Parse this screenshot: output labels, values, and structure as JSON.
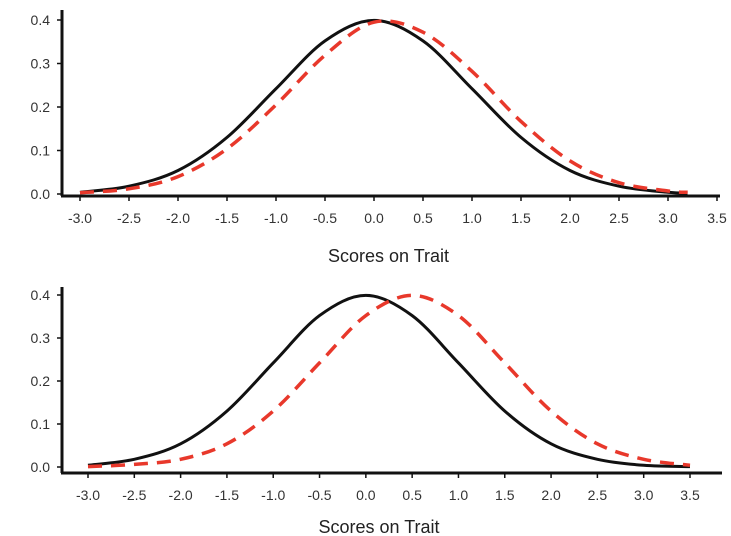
{
  "chart_data": [
    {
      "type": "line",
      "xlabel": "Scores on Trait",
      "ylabel": "",
      "xlim": [
        -3.0,
        3.5
      ],
      "ylim": [
        0.0,
        0.4
      ],
      "x_ticks": [
        "-3.0",
        "-2.5",
        "-2.0",
        "-1.5",
        "-1.0",
        "-0.5",
        "0.0",
        "0.5",
        "1.0",
        "1.5",
        "2.0",
        "2.5",
        "3.0",
        "3.5"
      ],
      "y_ticks": [
        "0.0",
        "0.1",
        "0.2",
        "0.3",
        "0.4"
      ],
      "grid": false,
      "series": [
        {
          "style": "solid",
          "color": "#111111",
          "x": [
            -3.0,
            -2.5,
            -2.0,
            -1.5,
            -1.0,
            -0.5,
            0.0,
            0.5,
            1.0,
            1.5,
            2.0,
            2.5,
            3.0,
            3.2
          ],
          "y": [
            0.004,
            0.018,
            0.054,
            0.13,
            0.242,
            0.352,
            0.399,
            0.352,
            0.242,
            0.13,
            0.054,
            0.018,
            0.004,
            0.002
          ]
        },
        {
          "style": "dashed",
          "color": "#e8382b",
          "x": [
            -3.0,
            -2.5,
            -2.0,
            -1.5,
            -1.0,
            -0.5,
            0.0,
            0.5,
            1.0,
            1.5,
            2.0,
            2.5,
            3.0,
            3.2
          ],
          "y": [
            0.003,
            0.012,
            0.04,
            0.104,
            0.205,
            0.319,
            0.395,
            0.372,
            0.282,
            0.167,
            0.076,
            0.026,
            0.007,
            0.004
          ]
        }
      ]
    },
    {
      "type": "line",
      "xlabel": "Scores on Trait",
      "ylabel": "",
      "xlim": [
        -3.0,
        3.5
      ],
      "ylim": [
        0.0,
        0.4
      ],
      "x_ticks": [
        "-3.0",
        "-2.5",
        "-2.0",
        "-1.5",
        "-1.0",
        "-0.5",
        "0.0",
        "0.5",
        "1.0",
        "1.5",
        "2.0",
        "2.5",
        "3.0",
        "3.5"
      ],
      "y_ticks": [
        "0.0",
        "0.1",
        "0.2",
        "0.3",
        "0.4"
      ],
      "grid": false,
      "series": [
        {
          "style": "solid",
          "color": "#111111",
          "x": [
            -3.0,
            -2.5,
            -2.0,
            -1.5,
            -1.0,
            -0.5,
            0.0,
            0.5,
            1.0,
            1.5,
            2.0,
            2.5,
            3.0,
            3.5
          ],
          "y": [
            0.004,
            0.018,
            0.054,
            0.13,
            0.242,
            0.352,
            0.399,
            0.352,
            0.242,
            0.13,
            0.054,
            0.018,
            0.004,
            0.001
          ]
        },
        {
          "style": "dashed",
          "color": "#e8382b",
          "x": [
            -3.0,
            -2.5,
            -2.0,
            -1.5,
            -1.0,
            -0.5,
            0.0,
            0.5,
            1.0,
            1.5,
            2.0,
            2.5,
            3.0,
            3.5
          ],
          "y": [
            0.001,
            0.006,
            0.018,
            0.054,
            0.13,
            0.242,
            0.352,
            0.399,
            0.352,
            0.242,
            0.13,
            0.054,
            0.018,
            0.004
          ]
        }
      ]
    }
  ]
}
